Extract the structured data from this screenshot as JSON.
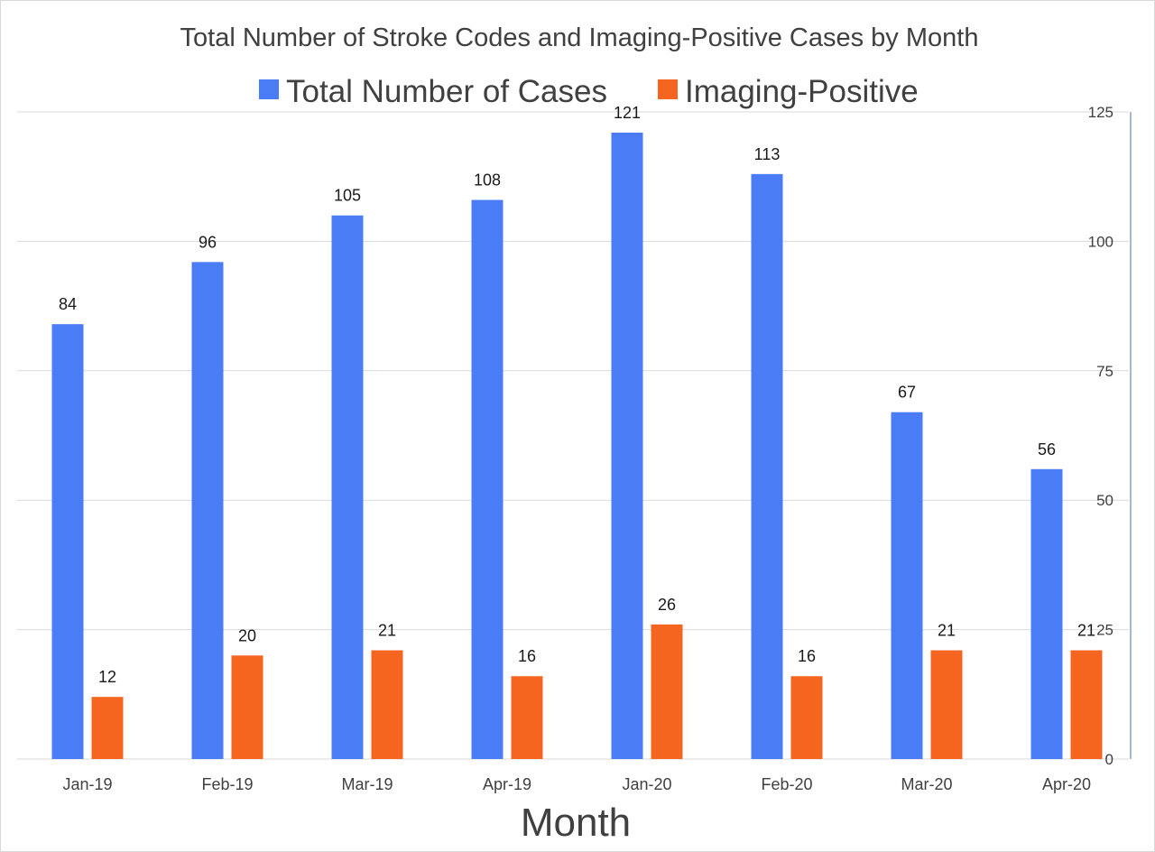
{
  "chart_data": {
    "type": "bar",
    "title": "Total Number of Stroke Codes and Imaging-Positive Cases by Month",
    "xlabel": "Month",
    "ylabel": "",
    "categories": [
      "Jan-19",
      "Feb-19",
      "Mar-19",
      "Apr-19",
      "Jan-20",
      "Feb-20",
      "Mar-20",
      "Apr-20"
    ],
    "series": [
      {
        "name": "Total Number of Cases",
        "color": "#4a7cf5",
        "values": [
          84,
          96,
          105,
          108,
          121,
          113,
          67,
          56
        ]
      },
      {
        "name": "Imaging-Positive",
        "color": "#f5651f",
        "values": [
          12,
          20,
          21,
          16,
          26,
          16,
          21,
          21
        ]
      }
    ],
    "ylim": [
      0,
      125
    ],
    "yticks": [
      "0",
      "25",
      "50",
      "75",
      "100",
      "125"
    ],
    "y_axis_side": "right",
    "grid": true,
    "legend_position": "top"
  }
}
